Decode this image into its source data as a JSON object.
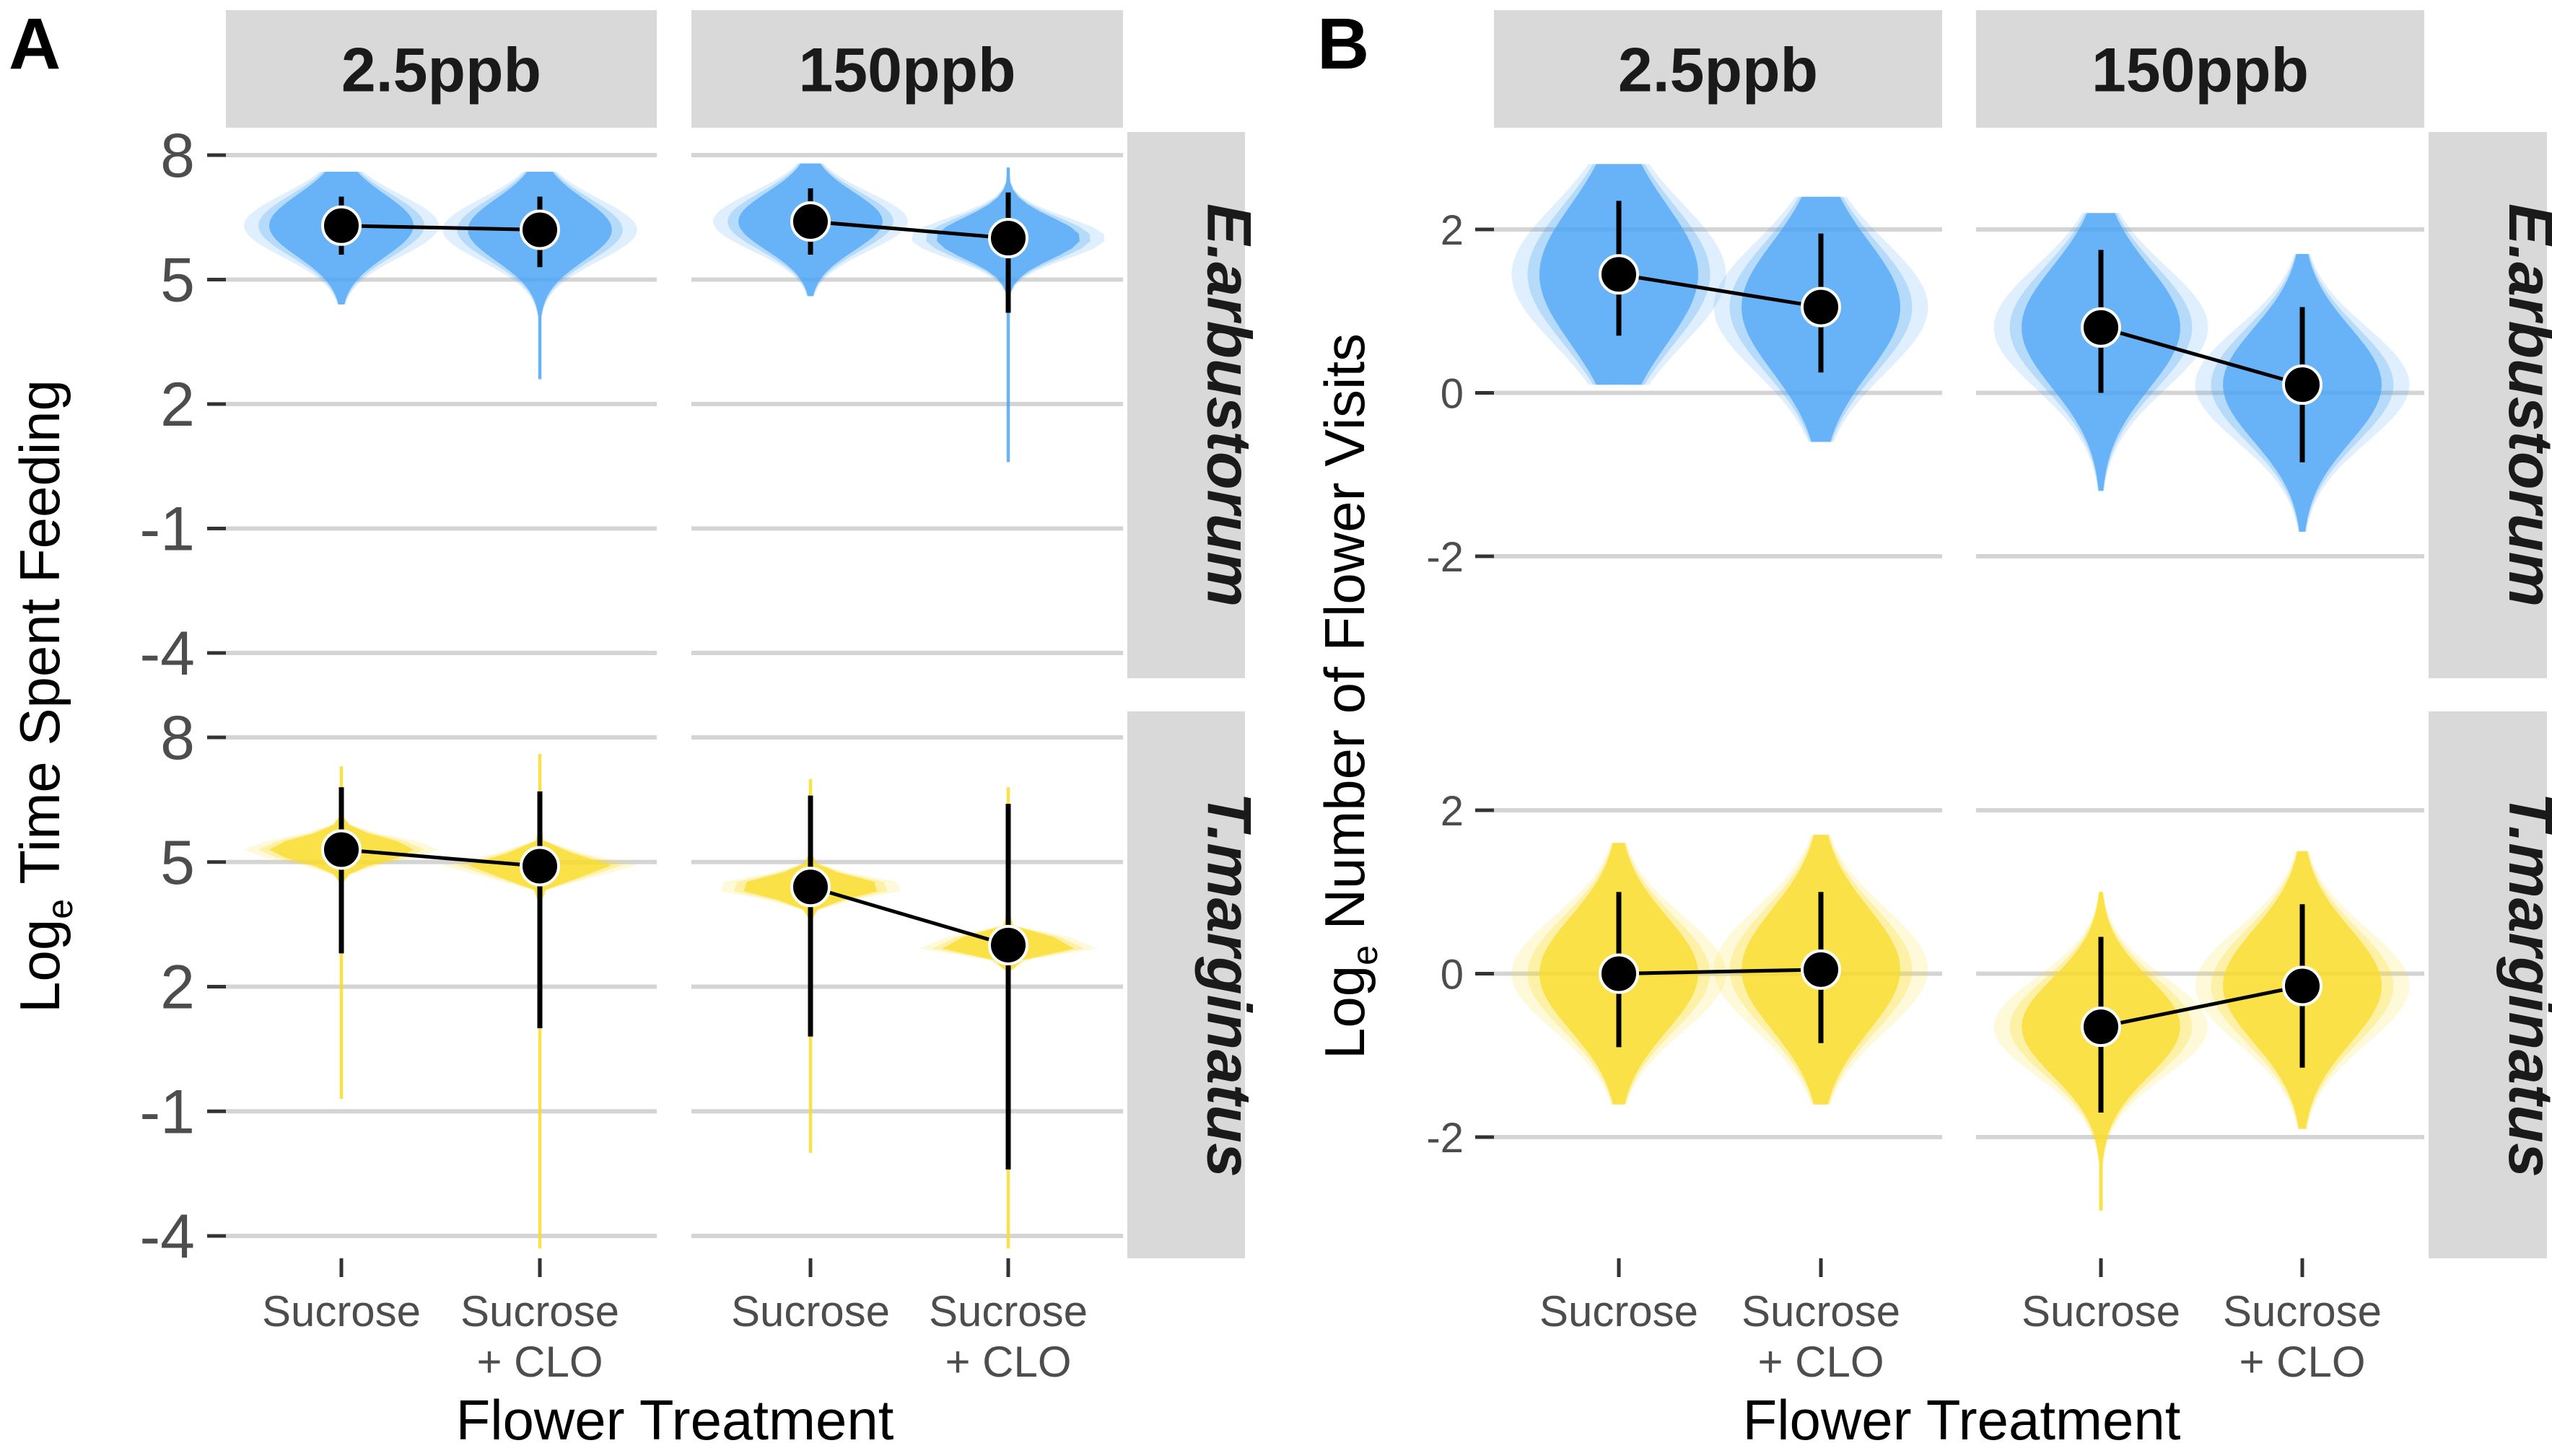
{
  "panel_labels": [
    "A",
    "B"
  ],
  "chart_data": [
    {
      "type": "violin",
      "panel": "A",
      "ylabel": "Loge Time Spent Feeding",
      "ylabel_base": "Log",
      "ylabel_sub": "e",
      "ylabel_rest": " Time Spent Feeding",
      "xlabel": "Flower Treatment",
      "columns": [
        "2.5ppb",
        "150ppb"
      ],
      "rows": [
        "E.arbustorum",
        "T.marginatus"
      ],
      "categories": [
        "Sucrose",
        "Sucrose\n+ CLO"
      ],
      "yticks": [
        8,
        5,
        2,
        -1,
        -4
      ],
      "ylim": [
        -4.3,
        9.4
      ],
      "series_colors": {
        "E.arbustorum": "#4da6f5",
        "T.marginatus": "#fadc28"
      },
      "facets": [
        {
          "row": "E.arbustorum",
          "col": "2.5ppb",
          "points": [
            {
              "category": "Sucrose",
              "mean": 6.3,
              "lo": 5.6,
              "hi": 7.0,
              "vmin": 4.4,
              "vmax": 7.6,
              "spread": 0.75
            },
            {
              "category": "Sucrose + CLO",
              "mean": 6.2,
              "lo": 5.3,
              "hi": 7.0,
              "vmin": 2.6,
              "vmax": 7.6,
              "spread": 0.75
            }
          ]
        },
        {
          "row": "E.arbustorum",
          "col": "150ppb",
          "points": [
            {
              "category": "Sucrose",
              "mean": 6.4,
              "lo": 5.6,
              "hi": 7.2,
              "vmin": 4.6,
              "vmax": 7.8,
              "spread": 0.7
            },
            {
              "category": "Sucrose + CLO",
              "mean": 6.0,
              "lo": 4.2,
              "hi": 7.1,
              "vmin": 0.6,
              "vmax": 7.7,
              "spread": 0.5
            }
          ]
        },
        {
          "row": "T.marginatus",
          "col": "2.5ppb",
          "points": [
            {
              "category": "Sucrose",
              "mean": 5.3,
              "lo": 2.8,
              "hi": 6.8,
              "vmin": -0.7,
              "vmax": 7.3,
              "spread": 0.28
            },
            {
              "category": "Sucrose + CLO",
              "mean": 4.9,
              "lo": 1.0,
              "hi": 6.7,
              "vmin": -4.3,
              "vmax": 7.6,
              "spread": 0.25
            }
          ]
        },
        {
          "row": "T.marginatus",
          "col": "150ppb",
          "points": [
            {
              "category": "Sucrose",
              "mean": 4.4,
              "lo": 0.8,
              "hi": 6.6,
              "vmin": -2.0,
              "vmax": 7.0,
              "spread": 0.25
            },
            {
              "category": "Sucrose + CLO",
              "mean": 3.0,
              "lo": -2.4,
              "hi": 6.4,
              "vmin": -4.3,
              "vmax": 6.8,
              "spread": 0.2
            }
          ]
        }
      ]
    },
    {
      "type": "violin",
      "panel": "B",
      "ylabel": "Loge Number of Flower Visits",
      "ylabel_base": "Log",
      "ylabel_sub": "e",
      "ylabel_rest": " Number of Flower Visits",
      "xlabel": "Flower Treatment",
      "columns": [
        "2.5ppb",
        "150ppb"
      ],
      "rows": [
        "E.arbustorum",
        "T.marginatus"
      ],
      "categories": [
        "Sucrose",
        "Sucrose\n+ CLO"
      ],
      "yticks": [
        2,
        0,
        -2
      ],
      "ylim_top": [
        -3.5,
        3.0
      ],
      "ylim_bottom": [
        -3.5,
        3.0
      ],
      "series_colors": {
        "E.arbustorum": "#4da6f5",
        "T.marginatus": "#fadc28"
      },
      "facets": [
        {
          "row": "E.arbustorum",
          "col": "2.5ppb",
          "points": [
            {
              "category": "Sucrose",
              "mean": 1.45,
              "lo": 0.7,
              "hi": 2.35,
              "vmin": 0.1,
              "vmax": 2.8,
              "spread": 0.85
            },
            {
              "category": "Sucrose + CLO",
              "mean": 1.05,
              "lo": 0.25,
              "hi": 1.95,
              "vmin": -0.6,
              "vmax": 2.4,
              "spread": 0.8
            }
          ]
        },
        {
          "row": "E.arbustorum",
          "col": "150ppb",
          "points": [
            {
              "category": "Sucrose",
              "mean": 0.8,
              "lo": 0.0,
              "hi": 1.75,
              "vmin": -1.2,
              "vmax": 2.2,
              "spread": 0.75
            },
            {
              "category": "Sucrose + CLO",
              "mean": 0.1,
              "lo": -0.85,
              "hi": 1.05,
              "vmin": -1.7,
              "vmax": 1.7,
              "spread": 0.7
            }
          ]
        },
        {
          "row": "T.marginatus",
          "col": "2.5ppb",
          "points": [
            {
              "category": "Sucrose",
              "mean": 0.0,
              "lo": -0.9,
              "hi": 1.0,
              "vmin": -1.6,
              "vmax": 1.6,
              "spread": 0.7
            },
            {
              "category": "Sucrose + CLO",
              "mean": 0.05,
              "lo": -0.85,
              "hi": 1.0,
              "vmin": -1.6,
              "vmax": 1.7,
              "spread": 0.75
            }
          ]
        },
        {
          "row": "T.marginatus",
          "col": "150ppb",
          "points": [
            {
              "category": "Sucrose",
              "mean": -0.65,
              "lo": -1.7,
              "hi": 0.45,
              "vmin": -2.9,
              "vmax": 1.0,
              "spread": 0.6
            },
            {
              "category": "Sucrose + CLO",
              "mean": -0.15,
              "lo": -1.15,
              "hi": 0.85,
              "vmin": -1.9,
              "vmax": 1.5,
              "spread": 0.7
            }
          ]
        }
      ]
    }
  ]
}
